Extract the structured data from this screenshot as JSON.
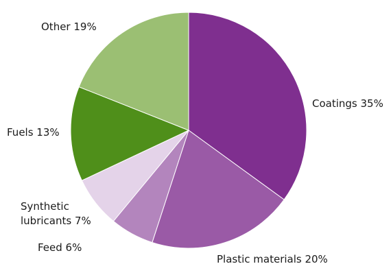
{
  "chart_data": {
    "type": "pie",
    "start_angle_deg": 0,
    "direction": "clockwise",
    "slices": [
      {
        "label": "Coatings 35%",
        "category": "Coatings",
        "value": 35,
        "color": "#7f2f8f"
      },
      {
        "label": "Plastic materials 20%",
        "category": "Plastic materials",
        "value": 20,
        "color": "#9a5aa6"
      },
      {
        "label": "Feed 6%",
        "category": "Feed",
        "value": 6,
        "color": "#b385bd"
      },
      {
        "label": "Synthetic lubricants 7%",
        "category": "Synthetic lubricants",
        "value": 7,
        "color": "#e4d3e9"
      },
      {
        "label": "Fuels 13%",
        "category": "Fuels",
        "value": 13,
        "color": "#4f8f1a"
      },
      {
        "label": "Other 19%",
        "category": "Other",
        "value": 19,
        "color": "#9bbf73"
      }
    ]
  }
}
